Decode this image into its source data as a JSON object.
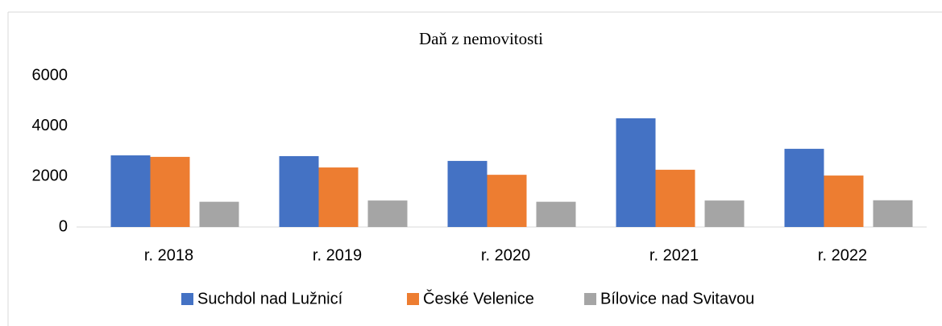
{
  "chart_data": {
    "type": "bar",
    "title": "Daň z nemovitosti",
    "categories": [
      "r. 2018",
      "r. 2019",
      "r. 2020",
      "r. 2021",
      "r. 2022"
    ],
    "series": [
      {
        "name": "Suchdol nad Lužnicí",
        "color": "#4472c4",
        "values": [
          2840,
          2810,
          2620,
          4310,
          3100
        ]
      },
      {
        "name": "České Velenice",
        "color": "#ed7d31",
        "values": [
          2780,
          2360,
          2070,
          2270,
          2040
        ]
      },
      {
        "name": "Bílovice nad Svitavou",
        "color": "#a5a5a5",
        "values": [
          1000,
          1050,
          1000,
          1050,
          1060
        ]
      }
    ],
    "ylim": [
      0,
      6000
    ],
    "yticks": [
      0,
      2000,
      4000,
      6000
    ],
    "grid": false,
    "legend": "bottom"
  }
}
